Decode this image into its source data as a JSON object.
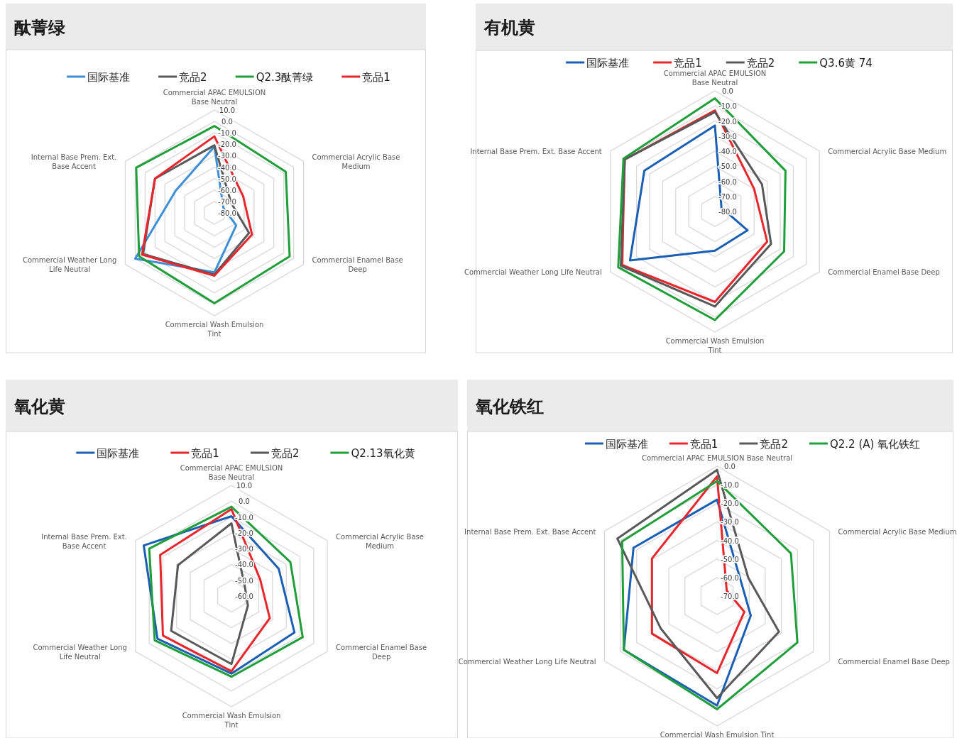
{
  "chart_data": [
    {
      "type": "radar",
      "title": "酞菁绿",
      "categories": [
        "Commercial APAC EMULSION Base Neutral",
        "Commercial Acrylic Base Medium",
        "Commercial Enamel Base Deep",
        "Commercial Wash Emulsion Tint",
        "Commercial Weather Long Life Neutral",
        "Internal Base Prem. Ext. Base Accent"
      ],
      "series": [
        {
          "name": "国际基准",
          "color": "#3d8fd6",
          "values": [
            -22,
            -71,
            -58,
            -28,
            0,
            -41
          ]
        },
        {
          "name": "竞品2",
          "color": "#595959",
          "values": [
            -21,
            -63,
            -45,
            -26,
            -8,
            -20
          ]
        },
        {
          "name": "Q2.3酞菁绿",
          "color": "#1f9e3a",
          "values": [
            -4,
            -8,
            -4,
            -1,
            -4,
            -1
          ]
        },
        {
          "name": "竞品1",
          "color": "#e8262b",
          "values": [
            -13,
            -51,
            -42,
            -25,
            -7,
            -20
          ]
        }
      ],
      "ylim": [
        -80,
        10
      ],
      "yticks": [
        {
          "value": -80,
          "label": "-80.0"
        },
        {
          "value": -70,
          "label": "-70.0"
        },
        {
          "value": -60,
          "label": "-60.0"
        },
        {
          "value": -50,
          "label": "-50.0"
        },
        {
          "value": -40,
          "label": "-40.0"
        },
        {
          "value": -30,
          "label": "-30.0"
        },
        {
          "value": -20,
          "label": "-20.0"
        },
        {
          "value": -10,
          "label": "-10.0"
        },
        {
          "value": 0,
          "label": "0.0"
        },
        {
          "value": 10,
          "label": "10.0"
        }
      ],
      "grid": true,
      "legend": "top"
    },
    {
      "type": "radar",
      "title": "有机黄",
      "categories": [
        "Commercial APAC EMULSION Base Neutral",
        "Commercial Acrylic Base Medium",
        "Commercial Enamel Base Deep",
        "Commercial Wash Emulsion Tint",
        "Commercial Weather Long Life Neutral",
        "Internal Base Prem. Ext. Base Accent"
      ],
      "series": [
        {
          "name": "国际基准",
          "color": "#1a5fb4",
          "values": [
            -23,
            -75,
            -55,
            -54,
            -15,
            -26
          ]
        },
        {
          "name": "竞品1",
          "color": "#e8262b",
          "values": [
            -13,
            -50,
            -40,
            -20,
            -9,
            -11
          ]
        },
        {
          "name": "竞品2",
          "color": "#595959",
          "values": [
            -14,
            -44,
            -37,
            -17,
            -8,
            -11
          ]
        },
        {
          "name": "Q3.6黄 74",
          "color": "#1f9e3a",
          "values": [
            -5,
            -26,
            -27,
            -8,
            -6,
            -10
          ]
        }
      ],
      "ylim": [
        -80,
        0
      ],
      "yticks": [
        {
          "value": -80,
          "label": "-80.0"
        },
        {
          "value": -70,
          "label": "-70.0"
        },
        {
          "value": -60,
          "label": "-60.0"
        },
        {
          "value": -50,
          "label": "-50.0"
        },
        {
          "value": -40,
          "label": "-40.0"
        },
        {
          "value": -30,
          "label": "-30.0"
        },
        {
          "value": -20,
          "label": "-20.0"
        },
        {
          "value": -10,
          "label": "-10.0"
        },
        {
          "value": 0,
          "label": "0.0"
        }
      ],
      "grid": true,
      "legend": "top"
    },
    {
      "type": "radar",
      "title": "氧化黄",
      "categories": [
        "Commercial APAC EMULSION Base Neutral",
        "Commercial Acrylic Base Medium",
        "Commercial Enamel Base Deep",
        "Commercial Wash Emulsion Tint",
        "Commercial Weather Long Life Neutral",
        "Internal Base Prem. Ext. Base Accent"
      ],
      "series": [
        {
          "name": "国际基准",
          "color": "#1a5fb4",
          "values": [
            -9.5,
            -25.5,
            -14,
            -11,
            -6,
            4
          ]
        },
        {
          "name": "竞品1",
          "color": "#e8262b",
          "values": [
            -5,
            -39,
            -32,
            -12.5,
            -10,
            -8
          ]
        },
        {
          "name": "竞品2",
          "color": "#595959",
          "values": [
            -14,
            -50,
            -48,
            -17,
            -16,
            -21
          ]
        },
        {
          "name": "Q2.13氧化黄",
          "color": "#1f9e3a",
          "values": [
            -3.5,
            -17,
            -8,
            -9,
            -4,
            0
          ]
        }
      ],
      "ylim": [
        -60,
        10
      ],
      "yticks": [
        {
          "value": -60,
          "label": "-60.0"
        },
        {
          "value": -50,
          "label": "-50.0"
        },
        {
          "value": -40,
          "label": "-40.0"
        },
        {
          "value": -30,
          "label": "-30.0"
        },
        {
          "value": -20,
          "label": "-20.0"
        },
        {
          "value": -10,
          "label": "-10.0"
        },
        {
          "value": 0,
          "label": "0.0"
        },
        {
          "value": 10,
          "label": "10.0"
        }
      ],
      "grid": true,
      "legend": "top"
    },
    {
      "type": "radar",
      "title": "氧化铁红",
      "categories": [
        "Commercial APAC EMULSION Base Neutral",
        "Commercial Acrylic Base Medium",
        "Commercial Enamel Base Deep",
        "Commercial Wash Emulsion Tint",
        "Commercial Weather Long Life Neutral",
        "Internal Base Prem. Ext. Base Accent"
      ],
      "series": [
        {
          "name": "国际基准",
          "color": "#1a5fb4",
          "values": [
            -18,
            -55,
            -49,
            -11,
            -12,
            -18
          ]
        },
        {
          "name": "竞品1",
          "color": "#e8262b",
          "values": [
            -5.5,
            -64,
            -53,
            -28.5,
            -29.5,
            -29.5
          ]
        },
        {
          "name": "竞品2",
          "color": "#595959",
          "values": [
            -2,
            -50.5,
            -31.5,
            -15,
            -35,
            -8
          ]
        },
        {
          "name": "Q2.2 (A) 氧化铁红",
          "color": "#1f9e3a",
          "values": [
            -8,
            -24,
            -20,
            -9,
            -12,
            -11
          ]
        }
      ],
      "ylim": [
        -70,
        0
      ],
      "yticks": [
        {
          "value": -70,
          "label": "-70.0"
        },
        {
          "value": -60,
          "label": "-60.0"
        },
        {
          "value": -50,
          "label": "-50.0"
        },
        {
          "value": -40,
          "label": "-40.0"
        },
        {
          "value": -30,
          "label": "-30.0"
        },
        {
          "value": -20,
          "label": "-20.0"
        },
        {
          "value": -10,
          "label": "-10.0"
        },
        {
          "value": 0,
          "label": "0.0"
        }
      ],
      "grid": true,
      "legend": "top"
    }
  ]
}
